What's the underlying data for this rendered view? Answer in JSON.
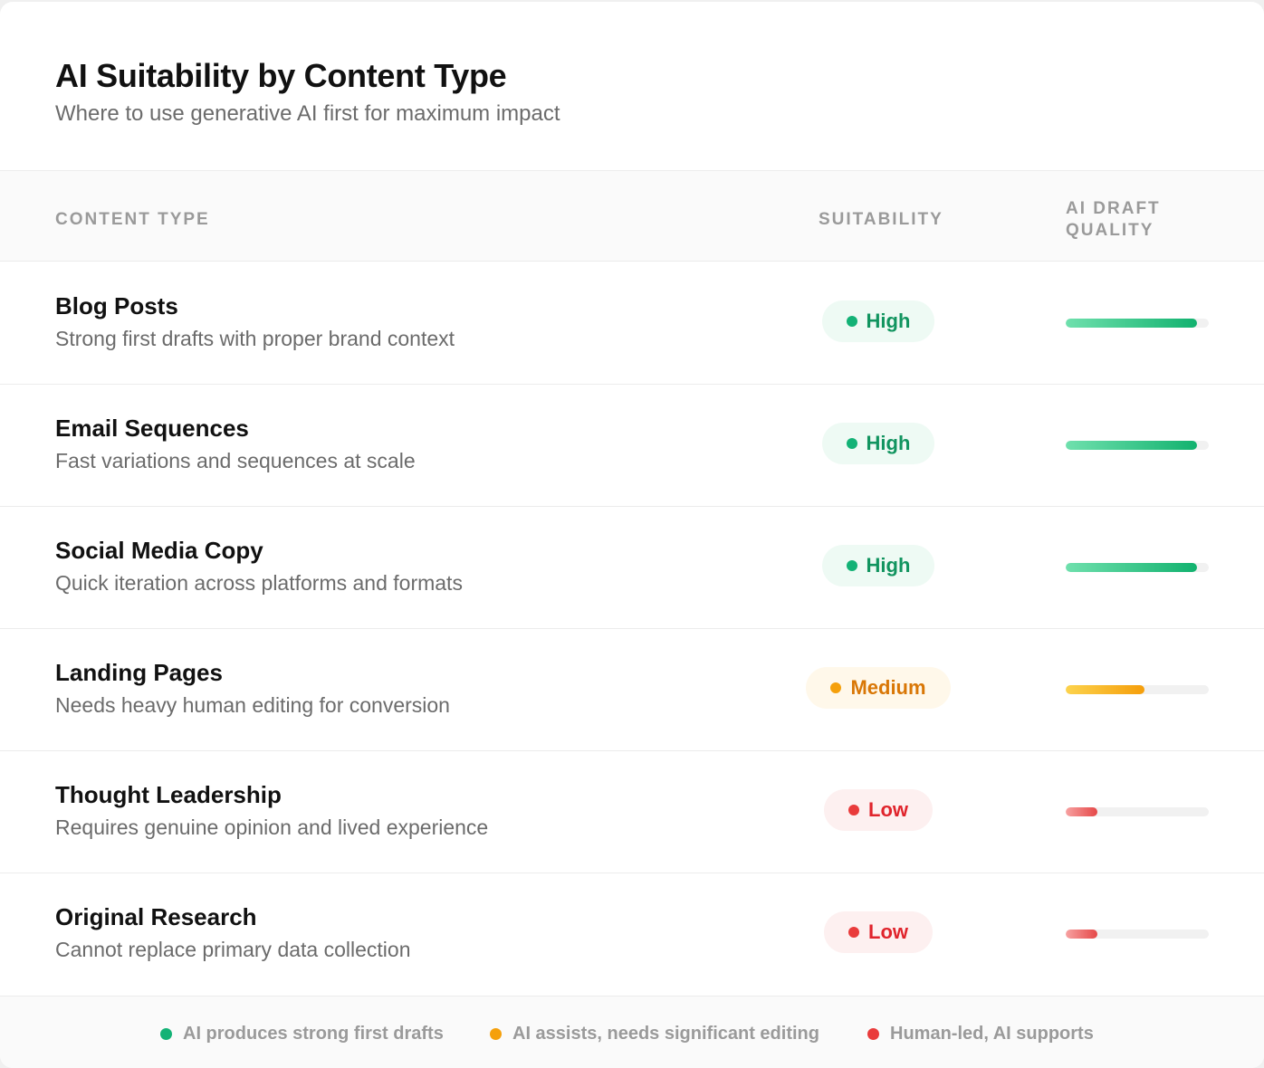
{
  "header": {
    "title": "AI Suitability by Content Type",
    "subtitle": "Where to use generative AI first for maximum impact"
  },
  "columns": {
    "content_type": "CONTENT TYPE",
    "suitability": "SUITABILITY",
    "ai_draft_quality": "AI DRAFT QUALITY"
  },
  "rows": [
    {
      "title": "Blog Posts",
      "description": "Strong first drafts with proper brand context",
      "suitability": "High",
      "level": "high",
      "quality_percent": 92
    },
    {
      "title": "Email Sequences",
      "description": "Fast variations and sequences at scale",
      "suitability": "High",
      "level": "high",
      "quality_percent": 92
    },
    {
      "title": "Social Media Copy",
      "description": "Quick iteration across platforms and formats",
      "suitability": "High",
      "level": "high",
      "quality_percent": 92
    },
    {
      "title": "Landing Pages",
      "description": "Needs heavy human editing for conversion",
      "suitability": "Medium",
      "level": "medium",
      "quality_percent": 55
    },
    {
      "title": "Thought Leadership",
      "description": "Requires genuine opinion and lived experience",
      "suitability": "Low",
      "level": "low",
      "quality_percent": 22
    },
    {
      "title": "Original Research",
      "description": "Cannot replace primary data collection",
      "suitability": "Low",
      "level": "low",
      "quality_percent": 22
    }
  ],
  "legend": [
    {
      "label": "AI produces strong first drafts",
      "color": "#13b276"
    },
    {
      "label": "AI assists, needs significant editing",
      "color": "#f5a00b"
    },
    {
      "label": "Human-led, AI supports",
      "color": "#e93b3b"
    }
  ]
}
